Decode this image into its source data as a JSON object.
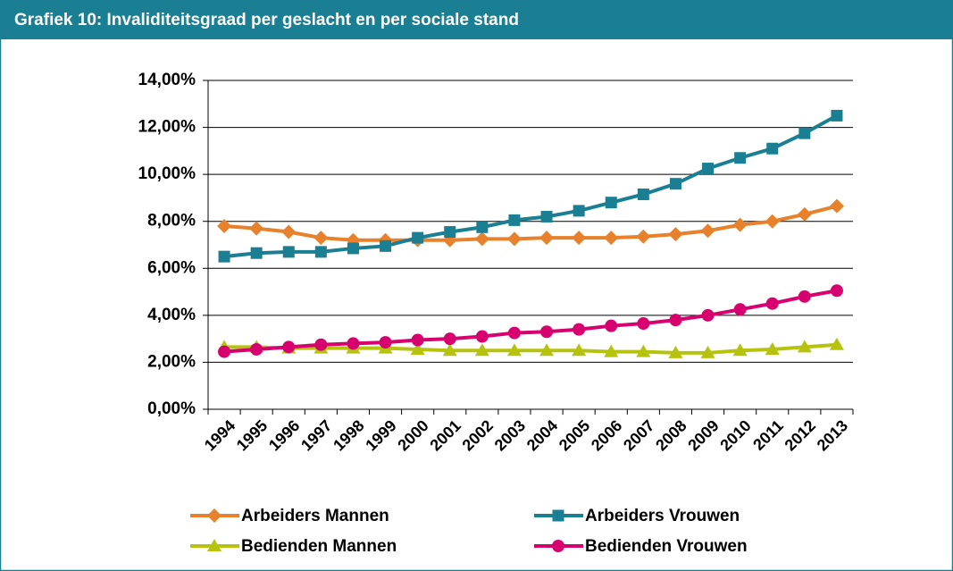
{
  "chart_data": {
    "type": "line",
    "title": "Grafiek 10: Invaliditeitsgraad per geslacht en per sociale stand",
    "categories": [
      "1994",
      "1995",
      "1996",
      "1997",
      "1998",
      "1999",
      "2000",
      "2001",
      "2002",
      "2003",
      "2004",
      "2005",
      "2006",
      "2007",
      "2008",
      "2009",
      "2010",
      "2011",
      "2012",
      "2013"
    ],
    "series": [
      {
        "name": "Arbeiders Mannen",
        "color": "#e8812b",
        "marker": "diamond",
        "values": [
          7.8,
          7.7,
          7.55,
          7.3,
          7.2,
          7.2,
          7.2,
          7.2,
          7.25,
          7.25,
          7.3,
          7.3,
          7.3,
          7.35,
          7.45,
          7.6,
          7.85,
          8.0,
          8.3,
          8.65
        ]
      },
      {
        "name": "Arbeiders Vrouwen",
        "color": "#1a7f93",
        "marker": "square",
        "values": [
          6.5,
          6.65,
          6.7,
          6.7,
          6.85,
          6.95,
          7.3,
          7.55,
          7.75,
          8.05,
          8.2,
          8.45,
          8.8,
          9.15,
          9.6,
          10.25,
          10.7,
          11.1,
          11.75,
          12.5
        ]
      },
      {
        "name": "Bedienden Mannen",
        "color": "#b5c30f",
        "marker": "triangle",
        "values": [
          2.65,
          2.65,
          2.6,
          2.6,
          2.6,
          2.6,
          2.55,
          2.5,
          2.5,
          2.5,
          2.5,
          2.5,
          2.45,
          2.45,
          2.4,
          2.4,
          2.5,
          2.55,
          2.65,
          2.75
        ]
      },
      {
        "name": "Bedienden Vrouwen",
        "color": "#d6006f",
        "marker": "circle",
        "values": [
          2.45,
          2.55,
          2.65,
          2.75,
          2.8,
          2.85,
          2.95,
          3.0,
          3.1,
          3.25,
          3.3,
          3.4,
          3.55,
          3.65,
          3.8,
          4.0,
          4.25,
          4.5,
          4.8,
          5.05
        ]
      }
    ],
    "ylim": [
      0,
      14
    ],
    "yticks": [
      {
        "value": 0,
        "label": "0,00%"
      },
      {
        "value": 2,
        "label": "2,00%"
      },
      {
        "value": 4,
        "label": "4,00%"
      },
      {
        "value": 6,
        "label": "6,00%"
      },
      {
        "value": 8,
        "label": "8,00%"
      },
      {
        "value": 10,
        "label": "10,00%"
      },
      {
        "value": 12,
        "label": "12,00%"
      },
      {
        "value": 14,
        "label": "14,00%"
      }
    ],
    "grid": true,
    "legend": "bottom"
  }
}
